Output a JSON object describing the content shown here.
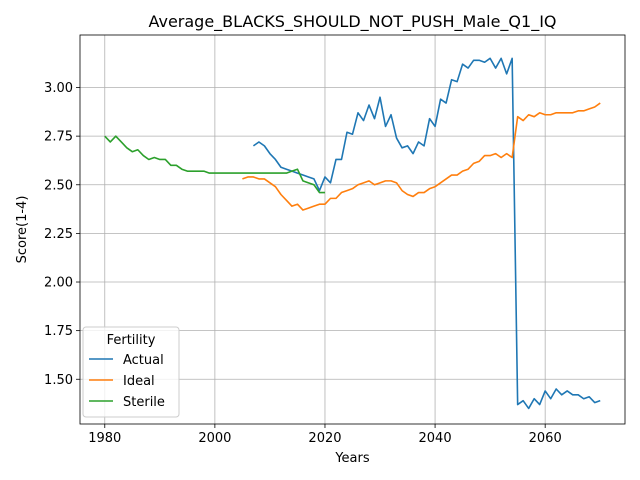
{
  "chart_data": {
    "type": "line",
    "title": "Average_BLACKS_SHOULD_NOT_PUSH_Male_Q1_IQ",
    "xlabel": "Years",
    "ylabel": "Score(1-4)",
    "xlim": [
      1975.5,
      2074.5
    ],
    "ylim": [
      1.27,
      3.27
    ],
    "xticks": [
      1980,
      2000,
      2020,
      2040,
      2060
    ],
    "yticks": [
      1.5,
      1.75,
      2.0,
      2.25,
      2.5,
      2.75,
      3.0
    ],
    "grid": true,
    "legend": {
      "title": "Fertility",
      "placement": "lower-left"
    },
    "series": [
      {
        "name": "Actual",
        "color": "#1f77b4",
        "points": [
          [
            2007,
            2.7
          ],
          [
            2008,
            2.72
          ],
          [
            2009,
            2.7
          ],
          [
            2010,
            2.66
          ],
          [
            2011,
            2.63
          ],
          [
            2012,
            2.59
          ],
          [
            2013,
            2.58
          ],
          [
            2014,
            2.57
          ],
          [
            2015,
            2.56
          ],
          [
            2016,
            2.55
          ],
          [
            2017,
            2.54
          ],
          [
            2018,
            2.53
          ],
          [
            2019,
            2.47
          ],
          [
            2020,
            2.54
          ],
          [
            2021,
            2.51
          ],
          [
            2022,
            2.63
          ],
          [
            2023,
            2.63
          ],
          [
            2024,
            2.77
          ],
          [
            2025,
            2.76
          ],
          [
            2026,
            2.87
          ],
          [
            2027,
            2.83
          ],
          [
            2028,
            2.91
          ],
          [
            2029,
            2.84
          ],
          [
            2030,
            2.95
          ],
          [
            2031,
            2.8
          ],
          [
            2032,
            2.86
          ],
          [
            2033,
            2.74
          ],
          [
            2034,
            2.69
          ],
          [
            2035,
            2.7
          ],
          [
            2036,
            2.66
          ],
          [
            2037,
            2.72
          ],
          [
            2038,
            2.7
          ],
          [
            2039,
            2.84
          ],
          [
            2040,
            2.8
          ],
          [
            2041,
            2.94
          ],
          [
            2042,
            2.92
          ],
          [
            2043,
            3.04
          ],
          [
            2044,
            3.03
          ],
          [
            2045,
            3.12
          ],
          [
            2046,
            3.1
          ],
          [
            2047,
            3.14
          ],
          [
            2048,
            3.14
          ],
          [
            2049,
            3.13
          ],
          [
            2050,
            3.15
          ],
          [
            2051,
            3.1
          ],
          [
            2052,
            3.15
          ],
          [
            2053,
            3.07
          ],
          [
            2054,
            3.15
          ],
          [
            2055,
            1.37
          ],
          [
            2056,
            1.39
          ],
          [
            2057,
            1.35
          ],
          [
            2058,
            1.4
          ],
          [
            2059,
            1.37
          ],
          [
            2060,
            1.44
          ],
          [
            2061,
            1.4
          ],
          [
            2062,
            1.45
          ],
          [
            2063,
            1.42
          ],
          [
            2064,
            1.44
          ],
          [
            2065,
            1.42
          ],
          [
            2066,
            1.42
          ],
          [
            2067,
            1.4
          ],
          [
            2068,
            1.41
          ],
          [
            2069,
            1.38
          ],
          [
            2070,
            1.39
          ]
        ]
      },
      {
        "name": "Ideal",
        "color": "#ff7f0e",
        "points": [
          [
            2005,
            2.53
          ],
          [
            2006,
            2.54
          ],
          [
            2007,
            2.54
          ],
          [
            2008,
            2.53
          ],
          [
            2009,
            2.53
          ],
          [
            2010,
            2.51
          ],
          [
            2011,
            2.49
          ],
          [
            2012,
            2.45
          ],
          [
            2013,
            2.42
          ],
          [
            2014,
            2.39
          ],
          [
            2015,
            2.4
          ],
          [
            2016,
            2.37
          ],
          [
            2017,
            2.38
          ],
          [
            2018,
            2.39
          ],
          [
            2019,
            2.4
          ],
          [
            2020,
            2.4
          ],
          [
            2021,
            2.43
          ],
          [
            2022,
            2.43
          ],
          [
            2023,
            2.46
          ],
          [
            2024,
            2.47
          ],
          [
            2025,
            2.48
          ],
          [
            2026,
            2.5
          ],
          [
            2027,
            2.51
          ],
          [
            2028,
            2.52
          ],
          [
            2029,
            2.5
          ],
          [
            2030,
            2.51
          ],
          [
            2031,
            2.52
          ],
          [
            2032,
            2.52
          ],
          [
            2033,
            2.51
          ],
          [
            2034,
            2.47
          ],
          [
            2035,
            2.45
          ],
          [
            2036,
            2.44
          ],
          [
            2037,
            2.46
          ],
          [
            2038,
            2.46
          ],
          [
            2039,
            2.48
          ],
          [
            2040,
            2.49
          ],
          [
            2041,
            2.51
          ],
          [
            2042,
            2.53
          ],
          [
            2043,
            2.55
          ],
          [
            2044,
            2.55
          ],
          [
            2045,
            2.57
          ],
          [
            2046,
            2.58
          ],
          [
            2047,
            2.61
          ],
          [
            2048,
            2.62
          ],
          [
            2049,
            2.65
          ],
          [
            2050,
            2.65
          ],
          [
            2051,
            2.66
          ],
          [
            2052,
            2.64
          ],
          [
            2053,
            2.66
          ],
          [
            2054,
            2.64
          ],
          [
            2055,
            2.85
          ],
          [
            2056,
            2.83
          ],
          [
            2057,
            2.86
          ],
          [
            2058,
            2.85
          ],
          [
            2059,
            2.87
          ],
          [
            2060,
            2.86
          ],
          [
            2061,
            2.86
          ],
          [
            2062,
            2.87
          ],
          [
            2063,
            2.87
          ],
          [
            2064,
            2.87
          ],
          [
            2065,
            2.87
          ],
          [
            2066,
            2.88
          ],
          [
            2067,
            2.88
          ],
          [
            2068,
            2.89
          ],
          [
            2069,
            2.9
          ],
          [
            2070,
            2.92
          ]
        ]
      },
      {
        "name": "Sterile",
        "color": "#2ca02c",
        "points": [
          [
            1980,
            2.75
          ],
          [
            1981,
            2.72
          ],
          [
            1982,
            2.75
          ],
          [
            1983,
            2.72
          ],
          [
            1984,
            2.69
          ],
          [
            1985,
            2.67
          ],
          [
            1986,
            2.68
          ],
          [
            1987,
            2.65
          ],
          [
            1988,
            2.63
          ],
          [
            1989,
            2.64
          ],
          [
            1990,
            2.63
          ],
          [
            1991,
            2.63
          ],
          [
            1992,
            2.6
          ],
          [
            1993,
            2.6
          ],
          [
            1994,
            2.58
          ],
          [
            1995,
            2.57
          ],
          [
            1996,
            2.57
          ],
          [
            1997,
            2.57
          ],
          [
            1998,
            2.57
          ],
          [
            1999,
            2.56
          ],
          [
            2000,
            2.56
          ],
          [
            2001,
            2.56
          ],
          [
            2002,
            2.56
          ],
          [
            2003,
            2.56
          ],
          [
            2004,
            2.56
          ],
          [
            2005,
            2.56
          ],
          [
            2006,
            2.56
          ],
          [
            2007,
            2.56
          ],
          [
            2008,
            2.56
          ],
          [
            2009,
            2.56
          ],
          [
            2010,
            2.56
          ],
          [
            2011,
            2.56
          ],
          [
            2012,
            2.56
          ],
          [
            2013,
            2.56
          ],
          [
            2014,
            2.57
          ],
          [
            2015,
            2.58
          ],
          [
            2016,
            2.52
          ],
          [
            2017,
            2.51
          ],
          [
            2018,
            2.5
          ],
          [
            2019,
            2.46
          ],
          [
            2020,
            2.46
          ]
        ]
      }
    ]
  }
}
